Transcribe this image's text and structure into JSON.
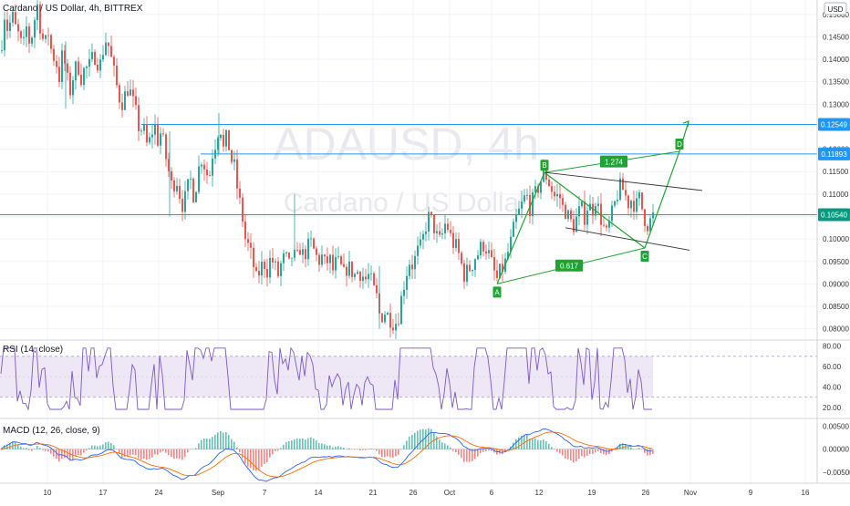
{
  "header": {
    "symbol_title": "Cardano / US Dollar, 4h, BITTREX",
    "currency": "USD"
  },
  "watermark": {
    "symbol": "ADAUSD, 4h",
    "name": "Cardano / US Dollar"
  },
  "colors": {
    "up": "#26a69a",
    "down": "#ef5350",
    "hline": "#2196f3",
    "pattern": "#21a333",
    "rsi_line": "#7e57c2",
    "rsi_band": "#ede7f6",
    "macd_line": "#2962ff",
    "signal_line": "#ff6d00",
    "badge_bg": "#2196f3",
    "pattern_badge": "#089981"
  },
  "chart_data": [
    {
      "type": "candlestick",
      "title": "Cardano / US Dollar, 4h, BITTREX",
      "ylim": [
        0.0775,
        0.1532
      ],
      "y_ticks": [
        "0.15000",
        "0.14500",
        "0.14000",
        "0.13500",
        "0.13000",
        "0.12500",
        "0.12000",
        "0.11500",
        "0.11000",
        "0.10500",
        "0.10000",
        "0.09500",
        "0.09000",
        "0.08500",
        "0.08000"
      ],
      "x_ticks": [
        "10",
        "17",
        "24",
        "Sep",
        "7",
        "14",
        "21",
        "26",
        "Oct",
        "6",
        "12",
        "19",
        "26",
        "Nov",
        "9",
        "16"
      ],
      "price_path": [
        [
          0,
          0.142
        ],
        [
          4,
          0.15
        ],
        [
          8,
          0.146
        ],
        [
          12,
          0.15
        ],
        [
          16,
          0.147
        ],
        [
          20,
          0.145
        ],
        [
          24,
          0.142
        ],
        [
          28,
          0.147
        ],
        [
          32,
          0.143
        ],
        [
          36,
          0.148
        ],
        [
          40,
          0.152
        ],
        [
          44,
          0.146
        ],
        [
          48,
          0.143
        ],
        [
          52,
          0.146
        ],
        [
          56,
          0.141
        ],
        [
          60,
          0.14
        ],
        [
          64,
          0.136
        ],
        [
          68,
          0.142
        ],
        [
          72,
          0.136
        ],
        [
          76,
          0.133
        ],
        [
          80,
          0.137
        ],
        [
          84,
          0.139
        ],
        [
          88,
          0.136
        ],
        [
          92,
          0.138
        ],
        [
          96,
          0.138
        ],
        [
          100,
          0.14
        ],
        [
          104,
          0.141
        ],
        [
          108,
          0.138
        ],
        [
          112,
          0.142
        ],
        [
          116,
          0.145
        ],
        [
          120,
          0.141
        ],
        [
          124,
          0.137
        ],
        [
          128,
          0.133
        ],
        [
          132,
          0.13
        ],
        [
          136,
          0.132
        ],
        [
          140,
          0.134
        ],
        [
          144,
          0.131
        ],
        [
          148,
          0.128
        ],
        [
          152,
          0.124
        ],
        [
          156,
          0.125
        ],
        [
          160,
          0.121
        ],
        [
          164,
          0.122
        ],
        [
          168,
          0.126
        ],
        [
          172,
          0.122
        ],
        [
          176,
          0.124
        ],
        [
          180,
          0.119
        ],
        [
          184,
          0.115
        ],
        [
          188,
          0.111
        ],
        [
          192,
          0.114
        ],
        [
          196,
          0.11
        ],
        [
          200,
          0.107
        ],
        [
          204,
          0.111
        ],
        [
          208,
          0.113
        ],
        [
          212,
          0.109
        ],
        [
          216,
          0.115
        ],
        [
          220,
          0.118
        ],
        [
          224,
          0.116
        ],
        [
          228,
          0.113
        ],
        [
          232,
          0.119
        ],
        [
          236,
          0.122
        ],
        [
          240,
          0.126
        ],
        [
          244,
          0.12
        ],
        [
          248,
          0.123
        ],
        [
          252,
          0.118
        ],
        [
          256,
          0.116
        ],
        [
          260,
          0.11
        ],
        [
          264,
          0.106
        ],
        [
          268,
          0.1
        ],
        [
          272,
          0.098
        ],
        [
          276,
          0.095
        ],
        [
          280,
          0.091
        ],
        [
          284,
          0.093
        ],
        [
          288,
          0.095
        ],
        [
          292,
          0.093
        ],
        [
          296,
          0.096
        ],
        [
          300,
          0.094
        ],
        [
          304,
          0.092
        ],
        [
          308,
          0.095
        ],
        [
          312,
          0.096
        ],
        [
          316,
          0.094
        ],
        [
          320,
          0.097
        ],
        [
          324,
          0.095
        ],
        [
          328,
          0.098
        ],
        [
          332,
          0.096
        ],
        [
          336,
          0.098
        ],
        [
          340,
          0.099
        ],
        [
          344,
          0.097
        ],
        [
          348,
          0.095
        ],
        [
          352,
          0.096
        ],
        [
          356,
          0.094
        ],
        [
          360,
          0.096
        ],
        [
          364,
          0.093
        ],
        [
          368,
          0.095
        ],
        [
          372,
          0.094
        ],
        [
          376,
          0.092
        ],
        [
          380,
          0.094
        ],
        [
          384,
          0.093
        ],
        [
          388,
          0.092
        ],
        [
          392,
          0.093
        ],
        [
          396,
          0.092
        ],
        [
          400,
          0.091
        ],
        [
          404,
          0.092
        ],
        [
          408,
          0.089
        ],
        [
          412,
          0.087
        ],
        [
          416,
          0.082
        ],
        [
          420,
          0.084
        ],
        [
          424,
          0.083
        ],
        [
          428,
          0.082
        ],
        [
          432,
          0.081
        ],
        [
          436,
          0.083
        ],
        [
          440,
          0.088
        ],
        [
          444,
          0.092
        ],
        [
          448,
          0.095
        ],
        [
          452,
          0.094
        ],
        [
          456,
          0.097
        ],
        [
          460,
          0.098
        ],
        [
          464,
          0.101
        ],
        [
          468,
          0.105
        ],
        [
          472,
          0.104
        ],
        [
          476,
          0.102
        ],
        [
          480,
          0.099
        ],
        [
          484,
          0.101
        ],
        [
          488,
          0.104
        ],
        [
          492,
          0.101
        ],
        [
          496,
          0.099
        ],
        [
          500,
          0.098
        ],
        [
          504,
          0.095
        ],
        [
          508,
          0.092
        ],
        [
          512,
          0.093
        ],
        [
          516,
          0.094
        ],
        [
          520,
          0.096
        ],
        [
          524,
          0.097
        ],
        [
          528,
          0.099
        ],
        [
          532,
          0.098
        ],
        [
          536,
          0.096
        ],
        [
          540,
          0.093
        ],
        [
          544,
          0.091
        ],
        [
          548,
          0.093
        ],
        [
          552,
          0.094
        ],
        [
          556,
          0.097
        ],
        [
          560,
          0.1
        ],
        [
          564,
          0.104
        ],
        [
          568,
          0.106
        ],
        [
          572,
          0.108
        ],
        [
          576,
          0.11
        ],
        [
          580,
          0.107
        ],
        [
          584,
          0.109
        ],
        [
          588,
          0.111
        ],
        [
          592,
          0.113
        ],
        [
          596,
          0.115
        ],
        [
          600,
          0.113
        ],
        [
          604,
          0.111
        ],
        [
          608,
          0.109
        ],
        [
          612,
          0.11
        ],
        [
          616,
          0.107
        ],
        [
          620,
          0.106
        ],
        [
          624,
          0.104
        ],
        [
          628,
          0.103
        ],
        [
          632,
          0.105
        ],
        [
          636,
          0.107
        ],
        [
          640,
          0.105
        ],
        [
          644,
          0.108
        ],
        [
          648,
          0.106
        ],
        [
          652,
          0.109
        ],
        [
          656,
          0.106
        ],
        [
          660,
          0.103
        ],
        [
          664,
          0.101
        ],
        [
          668,
          0.104
        ],
        [
          672,
          0.107
        ],
        [
          676,
          0.11
        ],
        [
          680,
          0.112
        ],
        [
          684,
          0.11
        ],
        [
          688,
          0.108
        ],
        [
          692,
          0.109
        ],
        [
          696,
          0.107
        ],
        [
          700,
          0.109
        ],
        [
          704,
          0.106
        ],
        [
          708,
          0.103
        ],
        [
          712,
          0.104
        ],
        [
          716,
          0.1054
        ]
      ],
      "horizontal_levels": [
        {
          "label": "0.12549",
          "value": 0.12549
        },
        {
          "label": "0.11893",
          "value": 0.11893
        },
        {
          "label": "0.10540",
          "value": 0.1054
        }
      ],
      "pattern_points": [
        {
          "label": "A",
          "value": 0.09
        },
        {
          "label": "B",
          "value": 0.1148
        },
        {
          "label": "C",
          "value": 0.098
        },
        {
          "label": "D",
          "value": 0.1195
        }
      ],
      "ratio_labels": [
        "1.274",
        "0.617"
      ]
    },
    {
      "type": "line",
      "title": "RSI (14, close)",
      "ylim": [
        10,
        85
      ],
      "y_ticks": [
        "80.00",
        "60.00",
        "40.00",
        "20.00"
      ],
      "band": [
        30,
        70
      ]
    },
    {
      "type": "line",
      "title": "MACD (12, 26, close, 9)",
      "y_ticks": [
        "0.00500",
        "0.00000",
        "−0.00500"
      ]
    }
  ]
}
